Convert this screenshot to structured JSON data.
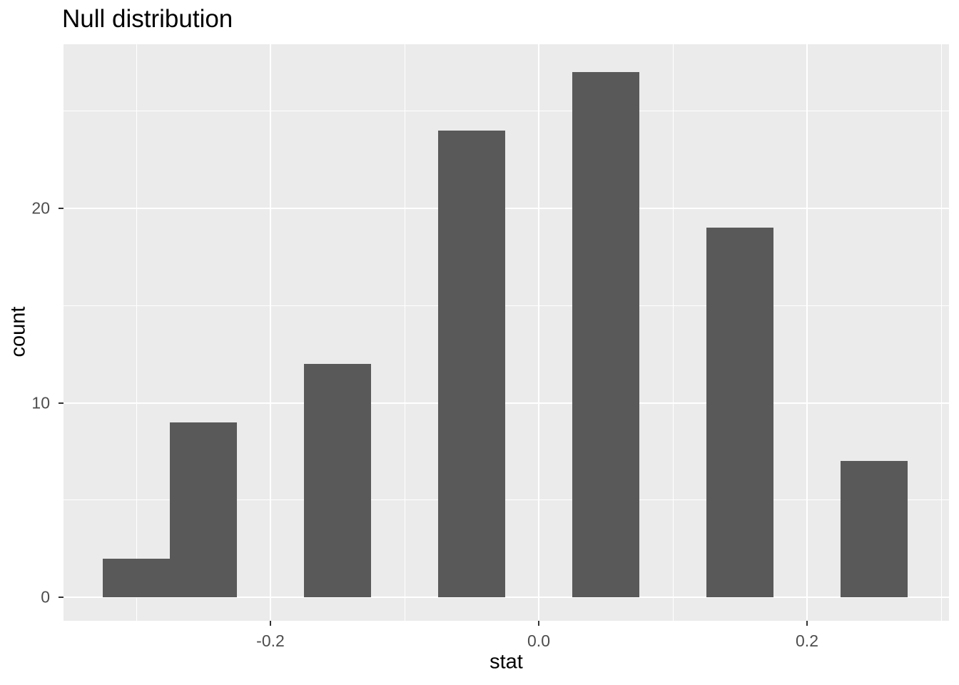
{
  "title": "Null distribution",
  "chart_data": {
    "type": "bar",
    "subtype": "histogram",
    "title": "Null distribution",
    "xlabel": "stat",
    "ylabel": "count",
    "binwidth": 0.05,
    "bins": [
      {
        "center": -0.3,
        "count": 2
      },
      {
        "center": -0.25,
        "count": 9
      },
      {
        "center": -0.15,
        "count": 12
      },
      {
        "center": -0.05,
        "count": 24
      },
      {
        "center": 0.05,
        "count": 27
      },
      {
        "center": 0.15,
        "count": 19
      },
      {
        "center": 0.25,
        "count": 7
      }
    ],
    "x_ticks": {
      "values": [
        -0.2,
        0.0,
        0.2
      ],
      "labels": [
        "-0.2",
        "0.0",
        "0.2"
      ]
    },
    "y_ticks": {
      "values": [
        0,
        10,
        20
      ],
      "labels": [
        "0",
        "10",
        "20"
      ]
    },
    "x_minor_gridlines": [
      -0.3,
      -0.1,
      0.1,
      0.3
    ],
    "y_minor_gridlines": [
      5,
      15,
      25
    ],
    "xlim": [
      -0.354,
      0.306
    ],
    "ylim": [
      -1.2,
      28.5
    ],
    "grid": "on",
    "legend": "none",
    "theme": {
      "bar_fill": "#595959",
      "panel_background": "#EBEBEB",
      "gridline_color": "#FFFFFF",
      "tick_mark_color": "#333333",
      "tick_label_color": "#4D4D4D",
      "title_color": "#000000",
      "axis_title_color": "#000000",
      "page_background": "#FFFFFF"
    }
  }
}
